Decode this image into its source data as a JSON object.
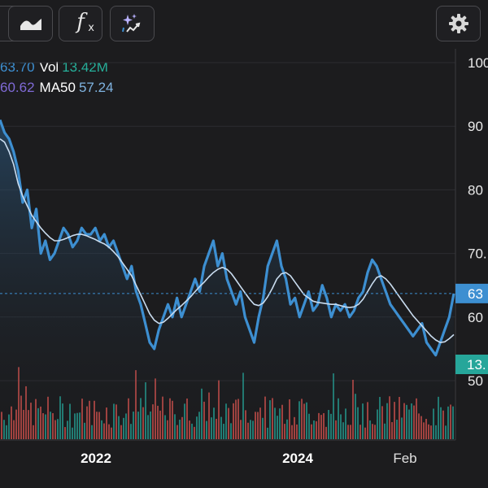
{
  "toolbar": {
    "buttons": [
      {
        "icon": "area-chart-icon"
      },
      {
        "icon": "function-icon",
        "label": "f",
        "sub": "x"
      },
      {
        "icon": "ai-sparkle-chart-icon"
      },
      {
        "icon": "gear-icon"
      }
    ]
  },
  "legend": {
    "price": "63.70",
    "vol_label": "Vol",
    "vol": "13.42M",
    "ma20": "60.62",
    "ma50_label": "MA50",
    "ma50": "57.24"
  },
  "badges": {
    "price": "63",
    "volume": "13."
  },
  "colors": {
    "background": "#1c1c1e",
    "price_line": "#3d8fd1",
    "ma_line": "#c9dcef",
    "volume_up": "#26a69a",
    "volume_down": "#d9534f",
    "price_badge": "#3d8fd1",
    "volume_badge": "#26a69a"
  },
  "chart_data": {
    "type": "line",
    "y_axis": {
      "ticks": [
        "100",
        "90",
        "80",
        "70.",
        "60",
        "50"
      ],
      "tick_values": [
        100,
        90,
        80,
        70,
        60,
        50
      ],
      "position": "right"
    },
    "x_axis": {
      "labels": [
        "2022",
        "2024",
        "Feb"
      ]
    },
    "current_price": 63.7,
    "series": [
      {
        "values": [
          91,
          89,
          88,
          86,
          83,
          78,
          80,
          74,
          77,
          70,
          72,
          69,
          70,
          72,
          74,
          73,
          71,
          72,
          74,
          73,
          73,
          74,
          72,
          73,
          71,
          72,
          70,
          68,
          66,
          68,
          64,
          62,
          59,
          56,
          55,
          58,
          60,
          62,
          60,
          63,
          60,
          62,
          64,
          66,
          64,
          68,
          70,
          72,
          68,
          70,
          66,
          64,
          62,
          64,
          60,
          58,
          56,
          60,
          63,
          68,
          70,
          72,
          68,
          66,
          62,
          63,
          60,
          62,
          64,
          61,
          62,
          65,
          63,
          60,
          62,
          61,
          62,
          60,
          61,
          63,
          64,
          67,
          69,
          68,
          66,
          64,
          62,
          61,
          60,
          59,
          58,
          57,
          58,
          59,
          56,
          55,
          54,
          56,
          58,
          60,
          63.7
        ]
      },
      {
        "values": [
          88,
          87.5,
          86,
          84,
          81,
          79,
          77.5,
          76,
          75,
          74,
          73.2,
          72.5,
          72,
          72,
          72.2,
          72.5,
          72.8,
          73,
          73,
          72.8,
          72.5,
          72.2,
          71.8,
          71.5,
          71,
          70.3,
          69.5,
          68.5,
          67.5,
          66.5,
          65,
          63.5,
          62,
          60.5,
          59.5,
          59,
          59.2,
          59.8,
          60.5,
          61.2,
          61.8,
          62.5,
          63.2,
          64,
          64.8,
          65.5,
          66.3,
          67,
          67.5,
          67.8,
          67.5,
          66.8,
          65.8,
          64.8,
          63.8,
          62.8,
          62,
          61.8,
          62.2,
          63.2,
          64.5,
          66,
          66.8,
          67,
          66.5,
          65.5,
          64.5,
          63.5,
          63,
          62.5,
          62.3,
          62.2,
          62.1,
          62,
          62,
          61.8,
          61.6,
          61.5,
          61.6,
          62,
          62.8,
          64,
          65.2,
          66.2,
          66.5,
          66,
          65.2,
          64.2,
          63.2,
          62.2,
          61.2,
          60.2,
          59.4,
          58.6,
          57.8,
          57,
          56.4,
          56,
          56.1,
          56.6,
          57.24
        ]
      }
    ]
  }
}
